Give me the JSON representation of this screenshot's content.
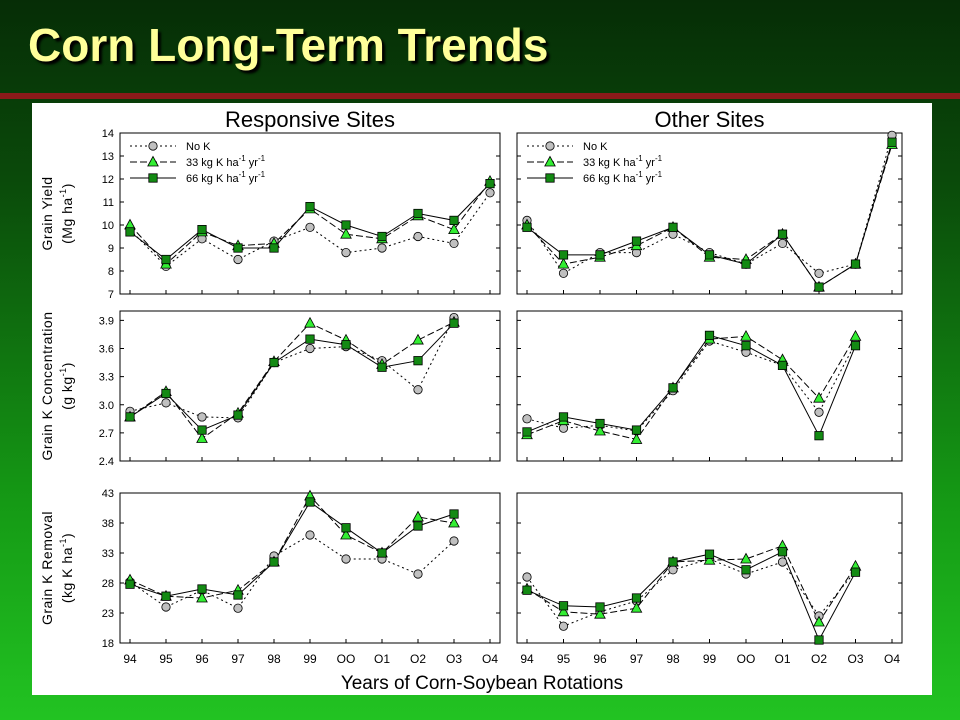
{
  "title": "Corn Long-Term Trends",
  "colors": {
    "nok": "#c0c0c0",
    "k33": "#33ee33",
    "k66": "#138a13",
    "title": "#ffff99",
    "rule": "#8b1a1a"
  },
  "legend": [
    {
      "prefix": "No K",
      "sup1": "",
      "mid": "",
      "sup2": "",
      "marker": "circle"
    },
    {
      "prefix": "33 kg K ha",
      "sup1": "-1",
      "mid": " yr",
      "sup2": "-1",
      "marker": "triangle"
    },
    {
      "prefix": "66 kg K ha",
      "sup1": "-1",
      "mid": " yr",
      "sup2": "-1",
      "marker": "square"
    }
  ],
  "chart_data": {
    "type": "line",
    "column_titles": [
      "Responsive Sites",
      "Other Sites"
    ],
    "xlabel": "Years of Corn-Soybean Rotations",
    "categories": [
      "94",
      "95",
      "96",
      "97",
      "98",
      "99",
      "OO",
      "O1",
      "O2",
      "O3",
      "O4"
    ],
    "rows": [
      {
        "ylabel_line1": "Grain Yield",
        "ylabel_prefix": "(Mg ha",
        "ylabel_sup": "-1",
        "ylabel_suffix": ")",
        "ylim": [
          7,
          14
        ],
        "yticks": [
          "7",
          "8",
          "9",
          "10",
          "11",
          "12",
          "13",
          "14"
        ],
        "panels": [
          {
            "series": [
              {
                "key": "nok",
                "values": [
                  9.8,
                  8.2,
                  9.4,
                  8.5,
                  9.3,
                  9.9,
                  8.8,
                  9.0,
                  9.5,
                  9.2,
                  11.4
                ]
              },
              {
                "key": "k33",
                "values": [
                  10.0,
                  8.3,
                  9.7,
                  9.1,
                  9.2,
                  10.7,
                  9.6,
                  9.4,
                  10.4,
                  9.8,
                  11.9
                ]
              },
              {
                "key": "k66",
                "values": [
                  9.7,
                  8.5,
                  9.8,
                  9.0,
                  9.0,
                  10.8,
                  10.0,
                  9.5,
                  10.5,
                  10.2,
                  11.8
                ]
              }
            ]
          },
          {
            "series": [
              {
                "key": "nok",
                "values": [
                  10.2,
                  7.9,
                  8.8,
                  8.8,
                  9.6,
                  8.8,
                  8.3,
                  9.2,
                  7.9,
                  8.3,
                  13.9
                ]
              },
              {
                "key": "k33",
                "values": [
                  10.0,
                  8.3,
                  8.6,
                  9.1,
                  9.9,
                  8.6,
                  8.5,
                  9.6,
                  7.3,
                  8.3,
                  13.5
                ]
              },
              {
                "key": "k66",
                "values": [
                  9.9,
                  8.7,
                  8.7,
                  9.3,
                  9.9,
                  8.7,
                  8.3,
                  9.6,
                  7.3,
                  8.3,
                  13.6
                ]
              }
            ]
          }
        ]
      },
      {
        "ylabel_line1": "Grain K Concentration",
        "ylabel_prefix": "(g kg",
        "ylabel_sup": "-1",
        "ylabel_suffix": ")",
        "ylim": [
          2.4,
          4.0
        ],
        "yticks": [
          "2.4",
          "2.7",
          "3.0",
          "3.3",
          "3.6",
          "3.9"
        ],
        "panels": [
          {
            "series": [
              {
                "key": "nok",
                "values": [
                  2.93,
                  3.02,
                  2.87,
                  2.86,
                  3.45,
                  3.6,
                  3.62,
                  3.47,
                  3.16,
                  3.93
                ]
              },
              {
                "key": "k33",
                "values": [
                  2.87,
                  3.14,
                  2.64,
                  2.91,
                  3.46,
                  3.87,
                  3.69,
                  3.43,
                  3.69,
                  3.88
                ]
              },
              {
                "key": "k66",
                "values": [
                  2.87,
                  3.12,
                  2.73,
                  2.89,
                  3.45,
                  3.7,
                  3.64,
                  3.4,
                  3.47,
                  3.87
                ]
              }
            ]
          },
          {
            "series": [
              {
                "key": "nok",
                "values": [
                  2.85,
                  2.75,
                  2.78,
                  2.72,
                  3.15,
                  3.68,
                  3.56,
                  3.42,
                  2.92,
                  3.66
                ]
              },
              {
                "key": "k33",
                "values": [
                  2.68,
                  2.83,
                  2.72,
                  2.63,
                  3.18,
                  3.7,
                  3.73,
                  3.48,
                  3.07,
                  3.73
                ]
              },
              {
                "key": "k66",
                "values": [
                  2.71,
                  2.87,
                  2.8,
                  2.73,
                  3.18,
                  3.74,
                  3.63,
                  3.42,
                  2.67,
                  3.63
                ]
              }
            ]
          }
        ]
      },
      {
        "ylabel_line1": "Grain K Removal",
        "ylabel_prefix": "(kg K ha",
        "ylabel_sup": "-1",
        "ylabel_suffix": ")",
        "ylim": [
          18,
          43
        ],
        "yticks": [
          "18",
          "23",
          "28",
          "33",
          "38",
          "43"
        ],
        "panels": [
          {
            "series": [
              {
                "key": "nok",
                "values": [
                  28.2,
                  24.0,
                  26.8,
                  23.8,
                  32.5,
                  36.0,
                  32.0,
                  32.0,
                  29.5,
                  35.0
                ]
              },
              {
                "key": "k33",
                "values": [
                  28.5,
                  25.8,
                  25.5,
                  26.8,
                  31.5,
                  42.5,
                  36.0,
                  33.0,
                  39.0,
                  38.0
                ]
              },
              {
                "key": "k66",
                "values": [
                  27.8,
                  25.8,
                  27.0,
                  26.0,
                  31.5,
                  41.5,
                  37.2,
                  33.0,
                  37.5,
                  39.5
                ]
              }
            ]
          },
          {
            "series": [
              {
                "key": "nok",
                "values": [
                  29.0,
                  20.8,
                  23.2,
                  25.0,
                  30.2,
                  32.0,
                  29.5,
                  31.5,
                  22.5,
                  30.0
                ]
              },
              {
                "key": "k33",
                "values": [
                  27.0,
                  23.2,
                  22.8,
                  23.8,
                  31.5,
                  31.8,
                  32.0,
                  34.2,
                  21.5,
                  30.8
                ]
              },
              {
                "key": "k66",
                "values": [
                  26.8,
                  24.2,
                  24.0,
                  25.5,
                  31.5,
                  32.8,
                  30.2,
                  33.2,
                  18.5,
                  29.8
                ]
              }
            ]
          }
        ]
      }
    ]
  }
}
